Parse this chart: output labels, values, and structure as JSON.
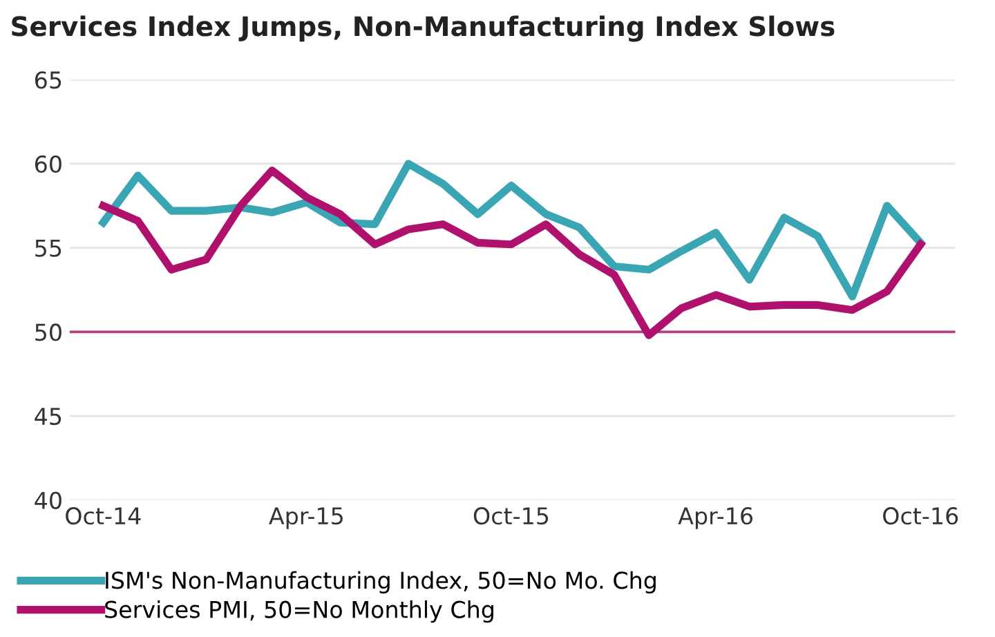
{
  "chart_data": {
    "type": "line",
    "title": "Services Index Jumps, Non-Manufacturing Index Slows",
    "x": [
      "2014-10",
      "2014-11",
      "2014-12",
      "2015-01",
      "2015-02",
      "2015-03",
      "2015-04",
      "2015-05",
      "2015-06",
      "2015-07",
      "2015-08",
      "2015-09",
      "2015-10",
      "2015-11",
      "2015-12",
      "2016-01",
      "2016-02",
      "2016-03",
      "2016-04",
      "2016-05",
      "2016-06",
      "2016-07",
      "2016-08",
      "2016-09",
      "2016-10"
    ],
    "series": [
      {
        "name": "ISM's Non-Manufacturing Index, 50=No Mo. Chg",
        "color": "#3aa6b4",
        "values": [
          56.5,
          59.3,
          57.2,
          57.2,
          57.4,
          57.1,
          57.7,
          56.5,
          56.4,
          60.0,
          58.8,
          57.0,
          58.7,
          57.0,
          56.2,
          53.9,
          53.7,
          54.8,
          55.9,
          53.1,
          56.8,
          55.7,
          52.1,
          57.5,
          55.3
        ]
      },
      {
        "name": "Services PMI, 50=No Monthly Chg",
        "color": "#b0116c",
        "values": [
          57.5,
          56.6,
          53.7,
          54.3,
          57.5,
          59.6,
          58.0,
          57.0,
          55.2,
          56.1,
          56.4,
          55.3,
          55.2,
          56.4,
          54.6,
          53.4,
          49.8,
          51.4,
          52.2,
          51.5,
          51.6,
          51.6,
          51.3,
          52.4,
          55.2
        ]
      }
    ],
    "xlim": [
      "2014-09",
      "2016-11"
    ],
    "xticks": [
      {
        "value": "2014-10",
        "label": "Oct-14"
      },
      {
        "value": "2015-04",
        "label": "Apr-15"
      },
      {
        "value": "2015-10",
        "label": "Oct-15"
      },
      {
        "value": "2016-04",
        "label": "Apr-16"
      },
      {
        "value": "2016-10",
        "label": "Oct-16"
      }
    ],
    "ylim": [
      40,
      65
    ],
    "yticks": [
      40,
      45,
      50,
      55,
      60,
      65
    ],
    "ref_lines": [
      {
        "axis": "y",
        "value": 50,
        "color": "#b5407e"
      }
    ],
    "grid": "y",
    "legend": "bottom left",
    "marker": "none",
    "line_style": "solid"
  }
}
